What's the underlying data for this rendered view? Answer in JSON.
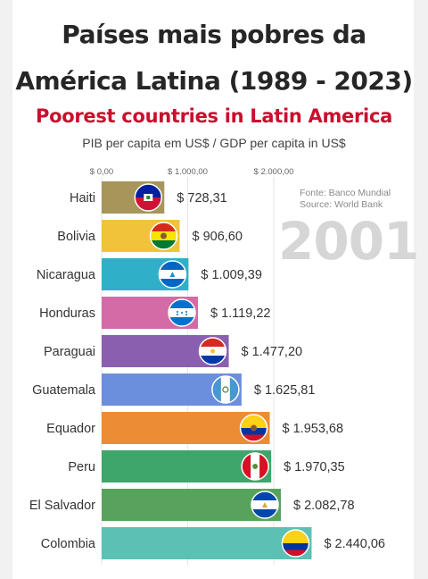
{
  "header": {
    "title_line1": "Países mais pobres da",
    "title_line2": "América Latina (1989 - 2023)",
    "subtitle": "Poorest countries in Latin America",
    "unit_label": "PIB per capita em US$ / GDP per capita in US$"
  },
  "source": {
    "line1": "Fonte: Banco Mundial",
    "line2": "Source: World Bank"
  },
  "year": "2001",
  "colors": {
    "title": "#262626",
    "subtitle": "#c8102e",
    "year": "#d6d6d6"
  },
  "chart_data": {
    "type": "bar",
    "orientation": "horizontal",
    "title": "Poorest countries in Latin America",
    "categories": [
      "Haiti",
      "Bolivia",
      "Nicaragua",
      "Honduras",
      "Paraguai",
      "Guatemala",
      "Equador",
      "Peru",
      "El Salvador",
      "Colombia"
    ],
    "values": [
      728.31,
      906.6,
      1009.39,
      1119.22,
      1477.2,
      1625.81,
      1953.68,
      1970.35,
      2082.78,
      2440.06
    ],
    "value_labels": [
      "$ 728,31",
      "$ 906,60",
      "$ 1.009,39",
      "$ 1.119,22",
      "$ 1.477,20",
      "$ 1.625,81",
      "$ 1.953,68",
      "$ 1.970,35",
      "$ 2.082,78",
      "$ 2.440,06"
    ],
    "bar_colors": [
      "#a8955a",
      "#f0c33a",
      "#2fb0c8",
      "#d46aa6",
      "#8a5fb0",
      "#6b8fdc",
      "#ec8c34",
      "#3ea66a",
      "#58a35c",
      "#5cc0b4"
    ],
    "flags": [
      "haiti-flag",
      "bolivia-flag",
      "nicaragua-flag",
      "honduras-flag",
      "paraguay-flag",
      "guatemala-flag",
      "ecuador-flag",
      "peru-flag",
      "el-salvador-flag",
      "colombia-flag"
    ],
    "xlim": [
      0,
      2500
    ],
    "x_ticks": [
      0,
      1000,
      2000
    ],
    "x_tick_labels": [
      "$ 0,00",
      "$ 1.000,00",
      "$ 2.000,00"
    ],
    "grid": true
  }
}
